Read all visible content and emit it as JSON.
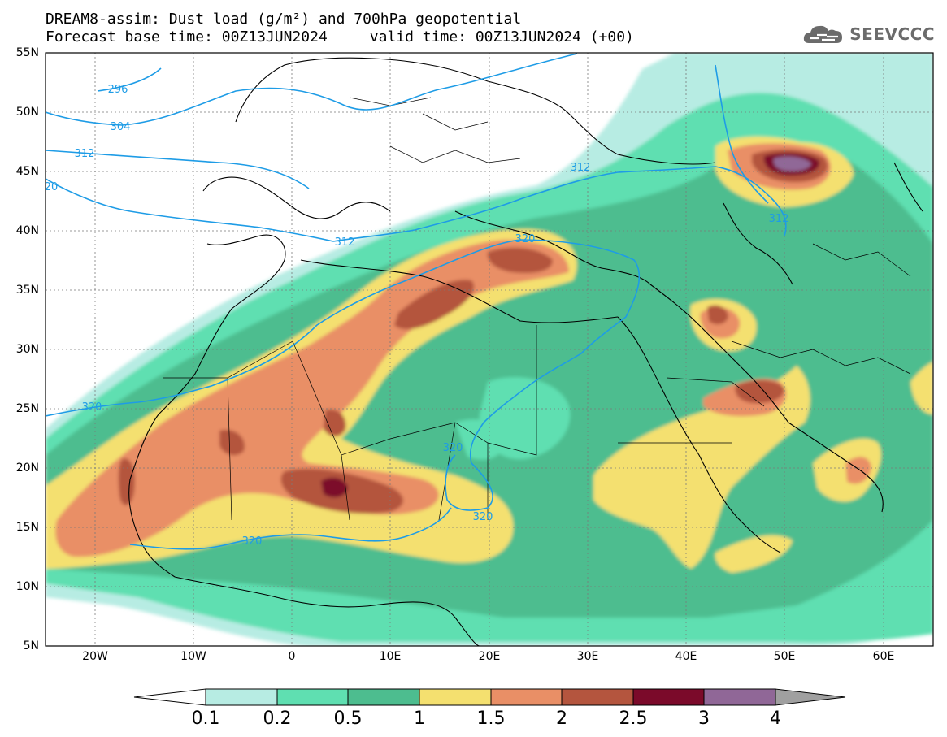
{
  "title": {
    "line1": "DREAM8-assim: Dust load (g/m²) and 700hPa geopotential",
    "line2_base": "Forecast base time: 00Z13JUN2024",
    "line2_valid": "valid time: 00Z13JUN2024 (+00)"
  },
  "logo": {
    "icon": "cloud-logo-icon",
    "text": "SEEVCCC"
  },
  "map": {
    "lon_range": [
      -25,
      65
    ],
    "lat_range": [
      5,
      55
    ],
    "lat_ticks": [
      "55N",
      "50N",
      "45N",
      "40N",
      "35N",
      "30N",
      "25N",
      "20N",
      "15N",
      "10N",
      "5N"
    ],
    "lon_ticks": [
      "20W",
      "10W",
      "0",
      "10E",
      "20E",
      "30E",
      "40E",
      "50E",
      "60E"
    ],
    "contour_labels": [
      "296",
      "304",
      "312",
      "20",
      "312",
      "320",
      "312",
      "320",
      "312",
      "320",
      "320",
      "320"
    ],
    "colors": {
      "c01": "#b7ece3",
      "c02": "#5fdfb1",
      "c05": "#4dbd8f",
      "c1": "#f4e06f",
      "c15": "#e98f66",
      "c2": "#b4553e",
      "c25": "#7b0a2a",
      "c3": "#906797",
      "over": "#a0a0a0",
      "contour": "#1e9ce6"
    }
  },
  "colorbar": {
    "labels": [
      "0.1",
      "0.2",
      "0.5",
      "1",
      "1.5",
      "2",
      "2.5",
      "3",
      "4"
    ],
    "colors": [
      "#b7ece3",
      "#5fdfb1",
      "#4dbd8f",
      "#f4e06f",
      "#e98f66",
      "#b4553e",
      "#7b0a2a",
      "#906797"
    ],
    "under_color": "#ffffff",
    "over_color": "#a0a0a0"
  }
}
